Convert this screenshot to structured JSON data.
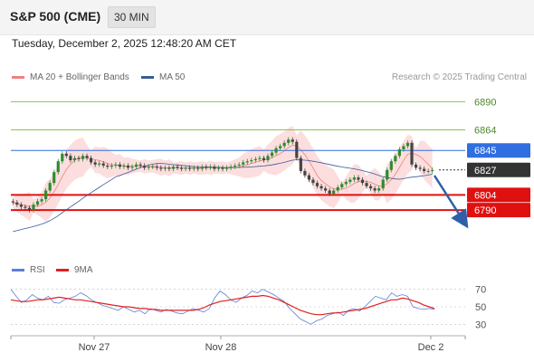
{
  "header": {
    "title": "S&P 500 (CME)",
    "interval": "30 MIN"
  },
  "date_text": "Tuesday, December 2, 2025 12:48:20 AM CET",
  "legend": {
    "items": [
      {
        "label": "MA 20 + Bollinger Bands",
        "color": "#f08080"
      },
      {
        "label": "MA 50",
        "color": "#3a5a9a"
      }
    ],
    "attribution": "Research © 2025 Trading Central"
  },
  "rsi_legend": {
    "items": [
      {
        "label": "RSI",
        "color": "#5b7fd4"
      },
      {
        "label": "9MA",
        "color": "#e02020"
      }
    ]
  },
  "chart_data": [
    {
      "type": "candlestick",
      "title": "S&P 500 (CME)",
      "y_range": [
        6765,
        6902
      ],
      "x_tick_labels": [
        "Nov 27",
        "Nov 28",
        "Dec 2"
      ],
      "levels": [
        {
          "value": 6890,
          "label": "6890",
          "kind": "resistance",
          "color": "#8bc34a"
        },
        {
          "value": 6864,
          "label": "6864",
          "kind": "resistance",
          "color": "#8bc34a"
        },
        {
          "value": 6845,
          "label": "6845",
          "kind": "pivot",
          "color": "#2f6fe0"
        },
        {
          "value": 6827,
          "label": "6827",
          "kind": "last",
          "color": "#333333"
        },
        {
          "value": 6804,
          "label": "6804",
          "kind": "support",
          "color": "#e01010"
        },
        {
          "value": 6790,
          "label": "6790",
          "kind": "support",
          "color": "#e01010"
        }
      ],
      "close": [
        6797,
        6795,
        6793,
        6792,
        6790,
        6795,
        6798,
        6800,
        6808,
        6815,
        6825,
        6835,
        6842,
        6840,
        6836,
        6838,
        6837,
        6840,
        6838,
        6834,
        6832,
        6833,
        6831,
        6830,
        6831,
        6832,
        6830,
        6831,
        6829,
        6830,
        6832,
        6831,
        6829,
        6830,
        6830,
        6829,
        6828,
        6829,
        6828,
        6830,
        6829,
        6828,
        6829,
        6828,
        6829,
        6828,
        6830,
        6829,
        6830,
        6828,
        6829,
        6828,
        6829,
        6830,
        6831,
        6832,
        6834,
        6835,
        6836,
        6837,
        6838,
        6836,
        6840,
        6843,
        6847,
        6849,
        6852,
        6855,
        6853,
        6838,
        6826,
        6822,
        6818,
        6815,
        6812,
        6810,
        6808,
        6805,
        6808,
        6811,
        6814,
        6816,
        6818,
        6820,
        6818,
        6815,
        6812,
        6810,
        6808,
        6810,
        6818,
        6827,
        6835,
        6840,
        6846,
        6849,
        6852,
        6832,
        6829,
        6828,
        6826,
        6826,
        6827
      ]
    },
    {
      "type": "line",
      "title": "RSI",
      "y_range": [
        22,
        78
      ],
      "y_ticks": [
        70,
        50,
        30
      ],
      "series": [
        {
          "name": "RSI",
          "color": "#5b7fd4",
          "values": [
            70,
            62,
            55,
            58,
            64,
            60,
            58,
            62,
            55,
            54,
            58,
            60,
            62,
            66,
            63,
            58,
            55,
            52,
            50,
            48,
            46,
            50,
            47,
            44,
            46,
            42,
            48,
            46,
            44,
            47,
            45,
            43,
            42,
            45,
            48,
            46,
            44,
            48,
            60,
            68,
            64,
            58,
            55,
            60,
            63,
            68,
            66,
            70,
            67,
            64,
            60,
            56,
            48,
            42,
            36,
            33,
            30,
            34,
            36,
            40,
            42,
            44,
            40,
            46,
            48,
            45,
            50,
            56,
            62,
            60,
            58,
            66,
            62,
            64,
            62,
            50,
            48,
            47,
            48,
            47
          ]
        },
        {
          "name": "9MA",
          "color": "#e02020",
          "values": [
            58,
            57,
            56,
            56,
            57,
            58,
            58,
            59,
            60,
            61,
            60,
            59,
            58,
            58,
            57,
            56,
            55,
            54,
            53,
            52,
            51,
            50,
            50,
            49,
            48,
            48,
            47,
            47,
            46,
            46,
            46,
            46,
            46,
            46,
            46,
            47,
            49,
            52,
            54,
            56,
            57,
            58,
            59,
            60,
            61,
            62,
            62,
            63,
            62,
            60,
            58,
            55,
            52,
            49,
            46,
            44,
            42,
            41,
            41,
            42,
            43,
            43,
            44,
            45,
            46,
            47,
            48,
            50,
            52,
            54,
            56,
            58,
            58,
            60,
            59,
            57,
            55,
            52,
            50,
            48
          ]
        }
      ]
    }
  ]
}
